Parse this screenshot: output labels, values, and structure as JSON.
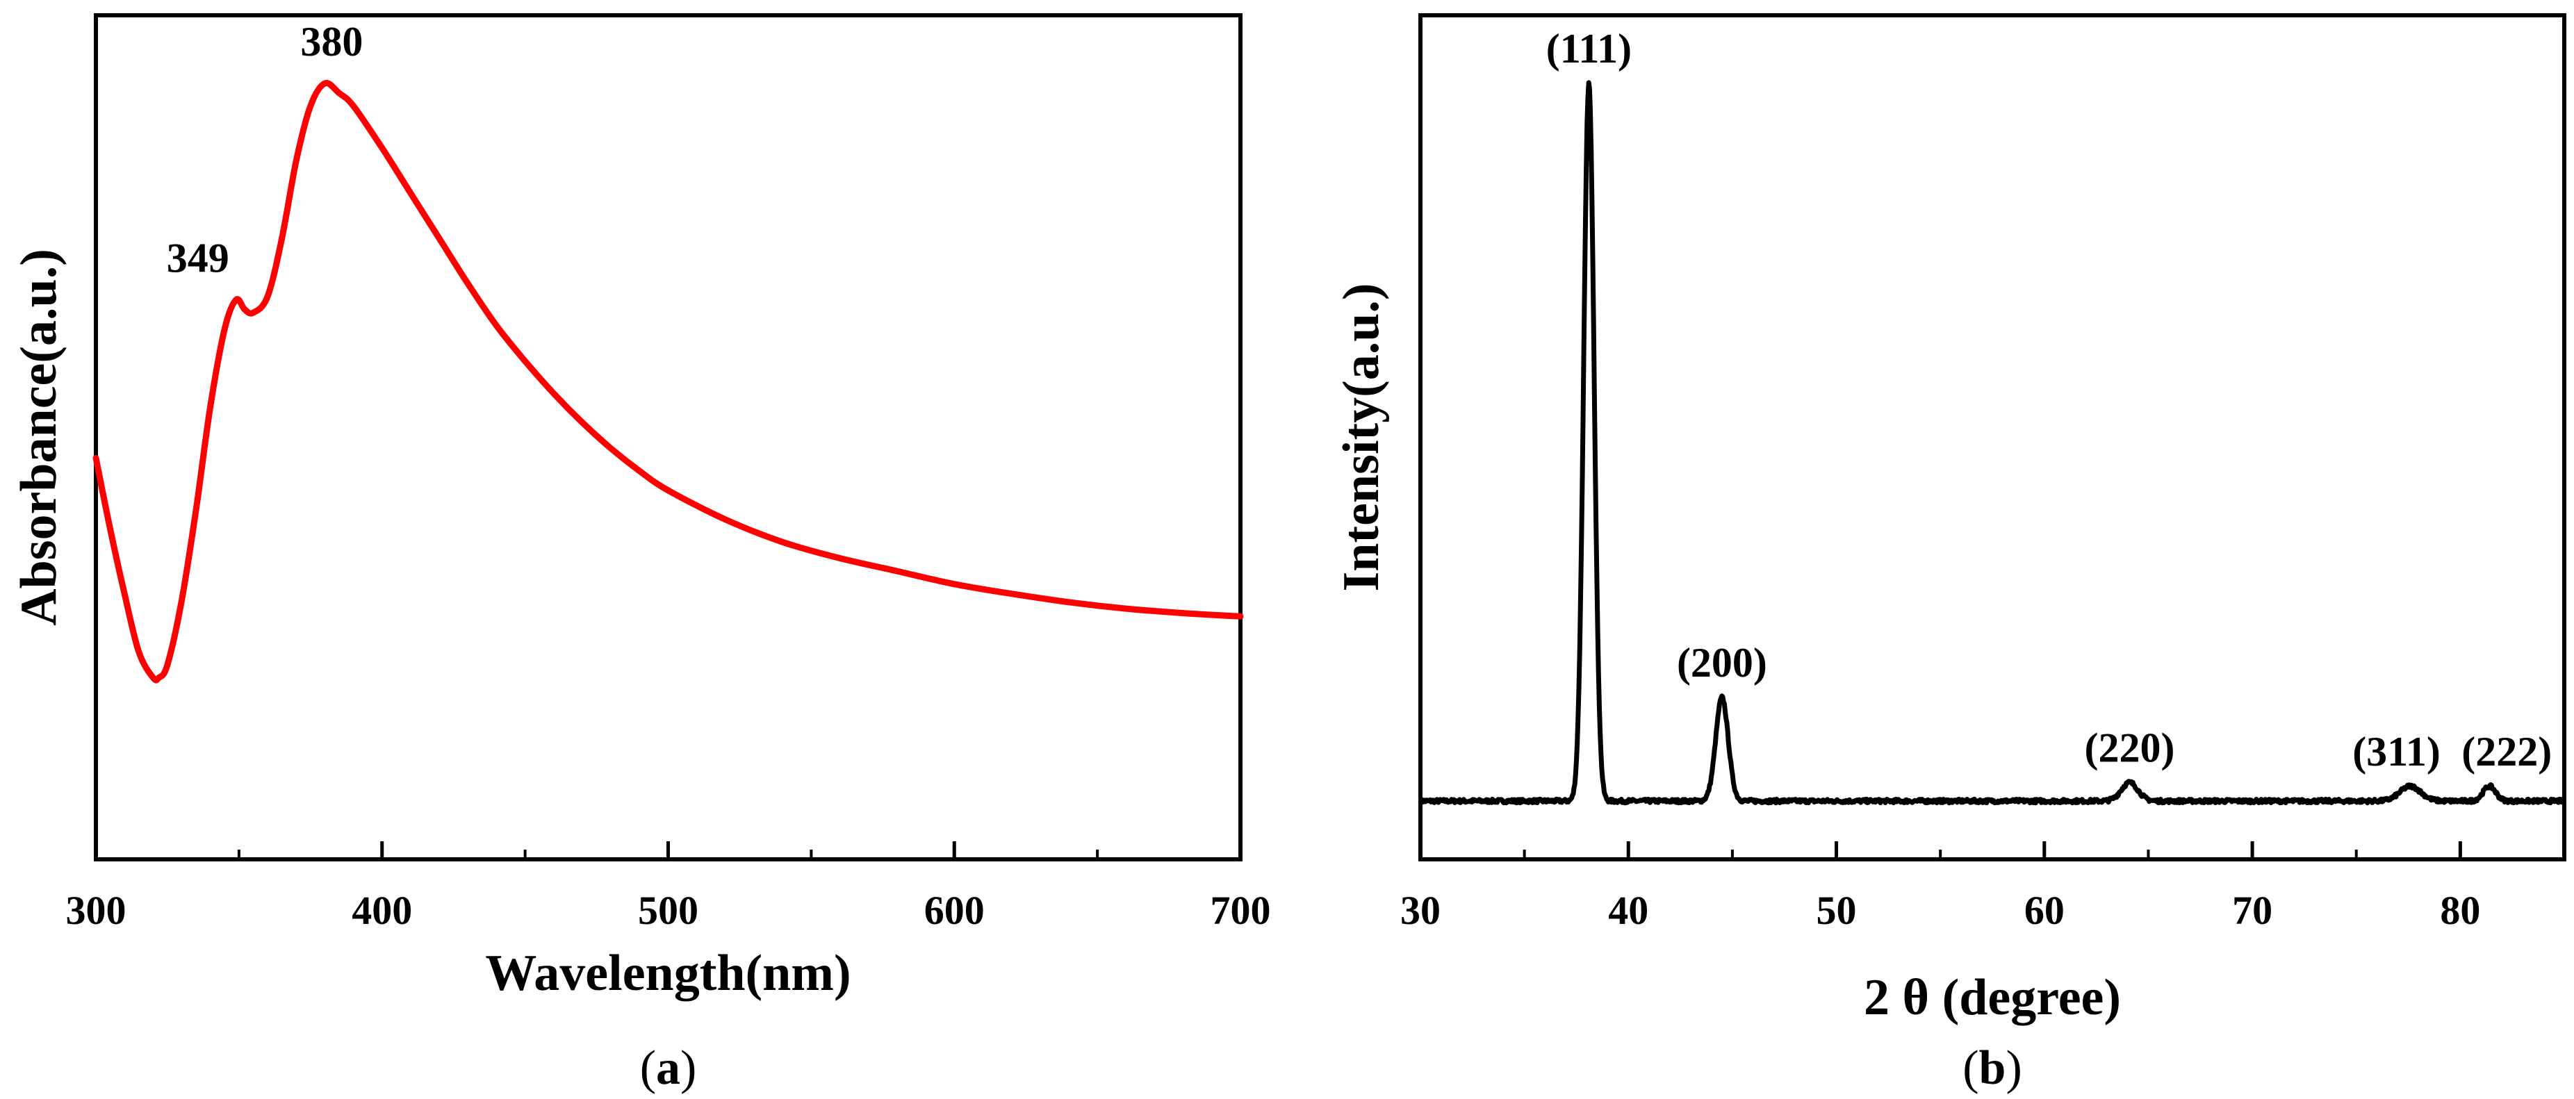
{
  "chart_data": [
    {
      "id": "a",
      "type": "line",
      "panel_label": "a",
      "title": "",
      "xlabel": "Wavelength(nm)",
      "ylabel": "Absorbance(a.u.)",
      "xlim": [
        300,
        700
      ],
      "ylim": [
        0,
        1
      ],
      "x_ticks": [
        300,
        400,
        500,
        600,
        700
      ],
      "x_minor_step": 50,
      "y_ticks": [],
      "grid": false,
      "series": [
        {
          "name": "Absorbance",
          "color": "#ff0000",
          "x": [
            300,
            305,
            310,
            315,
            320,
            322,
            325,
            330,
            335,
            340,
            345,
            349,
            352,
            355,
            360,
            365,
            370,
            375,
            380,
            385,
            390,
            400,
            410,
            420,
            430,
            440,
            450,
            460,
            470,
            480,
            490,
            500,
            520,
            540,
            560,
            580,
            600,
            620,
            640,
            660,
            680,
            700
          ],
          "y": [
            0.42,
            0.31,
            0.21,
            0.12,
            0.08,
            0.08,
            0.1,
            0.2,
            0.34,
            0.5,
            0.62,
            0.665,
            0.65,
            0.645,
            0.67,
            0.76,
            0.88,
            0.965,
            1.0,
            0.985,
            0.965,
            0.9,
            0.83,
            0.76,
            0.69,
            0.625,
            0.57,
            0.52,
            0.475,
            0.435,
            0.4,
            0.37,
            0.325,
            0.29,
            0.265,
            0.245,
            0.225,
            0.21,
            0.197,
            0.187,
            0.18,
            0.175
          ]
        }
      ],
      "annotations": [
        {
          "text": "349",
          "x": 349,
          "y": 0.665
        },
        {
          "text": "380",
          "x": 380,
          "y": 1.0
        }
      ]
    },
    {
      "id": "b",
      "type": "line",
      "panel_label": "b",
      "title": "",
      "xlabel": "2 θ (degree)",
      "ylabel": "Intensity(a.u.)",
      "xlim": [
        30,
        85
      ],
      "ylim": [
        0,
        100
      ],
      "x_ticks": [
        30,
        40,
        50,
        60,
        70,
        80
      ],
      "x_minor_step": 5,
      "y_ticks": [],
      "grid": false,
      "series": [
        {
          "name": "XRD pattern",
          "color": "#000000",
          "baseline": 3,
          "peaks": [
            {
              "label": "(111)",
              "center": 38.1,
              "height": 100,
              "width": 0.25
            },
            {
              "label": "(200)",
              "center": 44.5,
              "height": 17,
              "width": 0.3
            },
            {
              "label": "(220)",
              "center": 64.1,
              "height": 5.5,
              "width": 0.4
            },
            {
              "label": "(311)",
              "center": 77.6,
              "height": 5,
              "width": 0.5
            },
            {
              "label": "(222)",
              "center": 81.4,
              "height": 5,
              "width": 0.3
            }
          ]
        }
      ]
    }
  ]
}
